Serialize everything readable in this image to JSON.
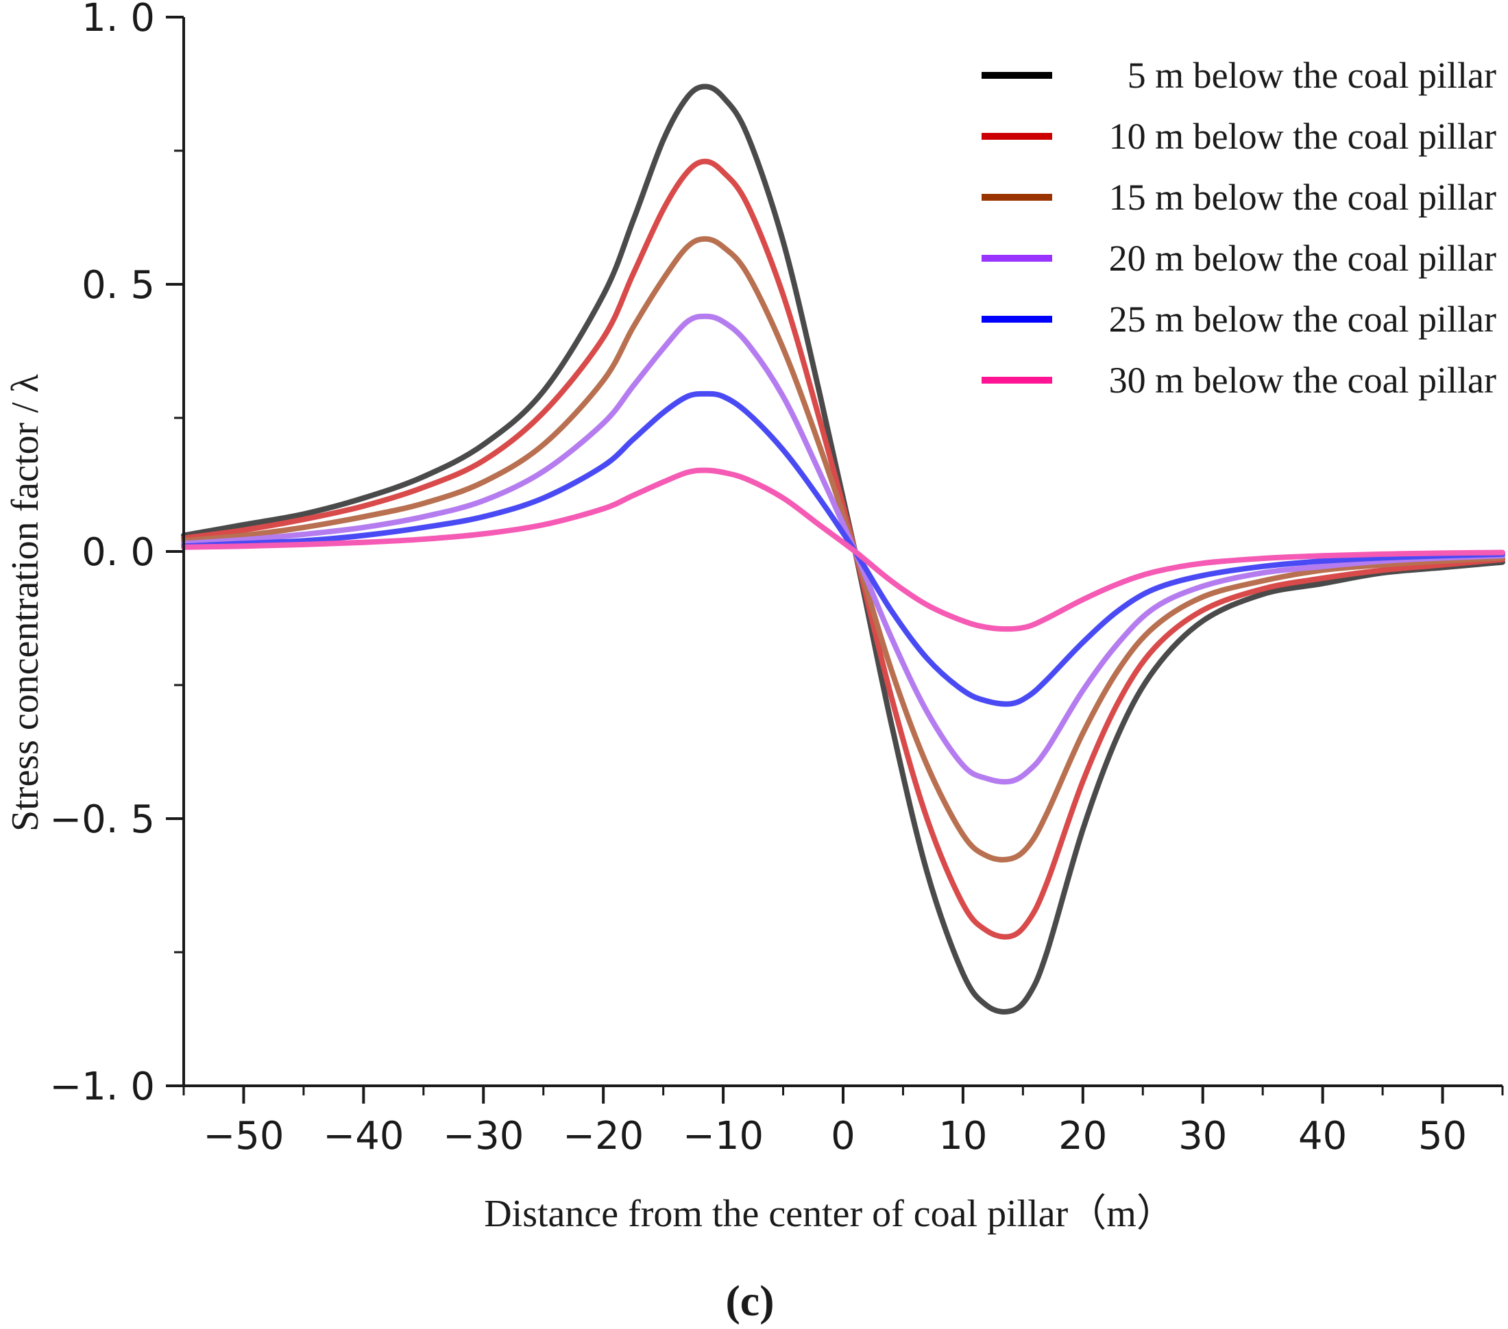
{
  "chart_data": {
    "type": "line",
    "title": "",
    "caption": "(c)",
    "xlabel": "Distance from the center of coal pillar（m）",
    "ylabel": "Stress concentration factor / λ",
    "xlim": [
      -55,
      55
    ],
    "ylim": [
      -1.0,
      1.0
    ],
    "x_ticks": [
      -50,
      -40,
      -30,
      -20,
      -10,
      0,
      10,
      20,
      30,
      40,
      50
    ],
    "x_tick_labels": [
      "−50",
      "−40",
      "−30",
      "−20",
      "−10",
      "0",
      "10",
      "20",
      "30",
      "40",
      "50"
    ],
    "y_ticks": [
      1.0,
      0.5,
      0.0,
      -0.5,
      -1.0
    ],
    "y_tick_labels": [
      "1. 0",
      "0. 5",
      "0. 0",
      "−0. 5",
      "−1. 0"
    ],
    "legend_position": "top-right",
    "x": [
      -55,
      -50,
      -45,
      -40,
      -35,
      -30,
      -25,
      -20,
      -17.5,
      -15,
      -13,
      -11.5,
      -10,
      -8,
      -5,
      -2,
      1,
      4,
      7,
      10,
      12,
      14,
      15.5,
      17,
      20,
      23,
      26,
      30,
      35,
      40,
      45,
      50,
      55
    ],
    "series": [
      {
        "name": "5 m below the coal pillar",
        "legend_label": "5 m below the coal pillar",
        "color": "#4a4a4a",
        "legend_color": "#000000",
        "values": [
          0.03,
          0.05,
          0.07,
          0.1,
          0.14,
          0.2,
          0.3,
          0.48,
          0.62,
          0.77,
          0.85,
          0.87,
          0.85,
          0.78,
          0.58,
          0.3,
          0.0,
          -0.32,
          -0.6,
          -0.79,
          -0.85,
          -0.86,
          -0.83,
          -0.75,
          -0.52,
          -0.34,
          -0.22,
          -0.13,
          -0.08,
          -0.06,
          -0.04,
          -0.03,
          -0.02
        ]
      },
      {
        "name": "10 m below the coal pillar",
        "legend_label": "10 m below the coal pillar",
        "color": "#d94a4a",
        "legend_color": "#cc0000",
        "values": [
          0.025,
          0.04,
          0.06,
          0.085,
          0.12,
          0.17,
          0.26,
          0.4,
          0.52,
          0.64,
          0.71,
          0.73,
          0.71,
          0.65,
          0.48,
          0.25,
          0.0,
          -0.27,
          -0.5,
          -0.66,
          -0.71,
          -0.72,
          -0.69,
          -0.62,
          -0.43,
          -0.28,
          -0.18,
          -0.11,
          -0.07,
          -0.05,
          -0.035,
          -0.025,
          -0.015
        ]
      },
      {
        "name": "15 m below the coal pillar",
        "legend_label": "15 m below the coal pillar",
        "color": "#b87050",
        "legend_color": "#993300",
        "values": [
          0.02,
          0.03,
          0.045,
          0.065,
          0.09,
          0.13,
          0.2,
          0.32,
          0.42,
          0.51,
          0.57,
          0.585,
          0.57,
          0.52,
          0.38,
          0.2,
          0.0,
          -0.22,
          -0.4,
          -0.53,
          -0.57,
          -0.575,
          -0.55,
          -0.49,
          -0.34,
          -0.22,
          -0.14,
          -0.085,
          -0.055,
          -0.035,
          -0.025,
          -0.018,
          -0.012
        ]
      },
      {
        "name": "20 m below the coal pillar",
        "legend_label": "20 m below the coal pillar",
        "color": "#b57cf0",
        "legend_color": "#9933ff",
        "values": [
          0.015,
          0.022,
          0.032,
          0.045,
          0.065,
          0.095,
          0.15,
          0.24,
          0.31,
          0.38,
          0.43,
          0.44,
          0.43,
          0.39,
          0.29,
          0.15,
          0.0,
          -0.16,
          -0.3,
          -0.4,
          -0.425,
          -0.43,
          -0.41,
          -0.37,
          -0.26,
          -0.17,
          -0.105,
          -0.065,
          -0.04,
          -0.028,
          -0.018,
          -0.012,
          -0.008
        ]
      },
      {
        "name": "25 m below the coal pillar",
        "legend_label": "25 m below the coal pillar",
        "color": "#4a4af5",
        "legend_color": "#0000ff",
        "values": [
          0.01,
          0.015,
          0.02,
          0.03,
          0.045,
          0.065,
          0.1,
          0.16,
          0.21,
          0.26,
          0.29,
          0.295,
          0.29,
          0.26,
          0.19,
          0.1,
          0.0,
          -0.11,
          -0.2,
          -0.26,
          -0.28,
          -0.285,
          -0.27,
          -0.24,
          -0.17,
          -0.11,
          -0.07,
          -0.045,
          -0.028,
          -0.018,
          -0.012,
          -0.008,
          -0.005
        ]
      },
      {
        "name": "30 m below the coal pillar",
        "legend_label": "30 m below the coal pillar",
        "color": "#f55ab4",
        "legend_color": "#ff1493",
        "values": [
          0.008,
          0.01,
          0.013,
          0.017,
          0.023,
          0.033,
          0.05,
          0.08,
          0.105,
          0.13,
          0.148,
          0.152,
          0.148,
          0.135,
          0.1,
          0.05,
          0.0,
          -0.055,
          -0.1,
          -0.13,
          -0.142,
          -0.145,
          -0.14,
          -0.125,
          -0.09,
          -0.06,
          -0.038,
          -0.022,
          -0.013,
          -0.008,
          -0.005,
          -0.003,
          -0.002
        ]
      }
    ]
  }
}
